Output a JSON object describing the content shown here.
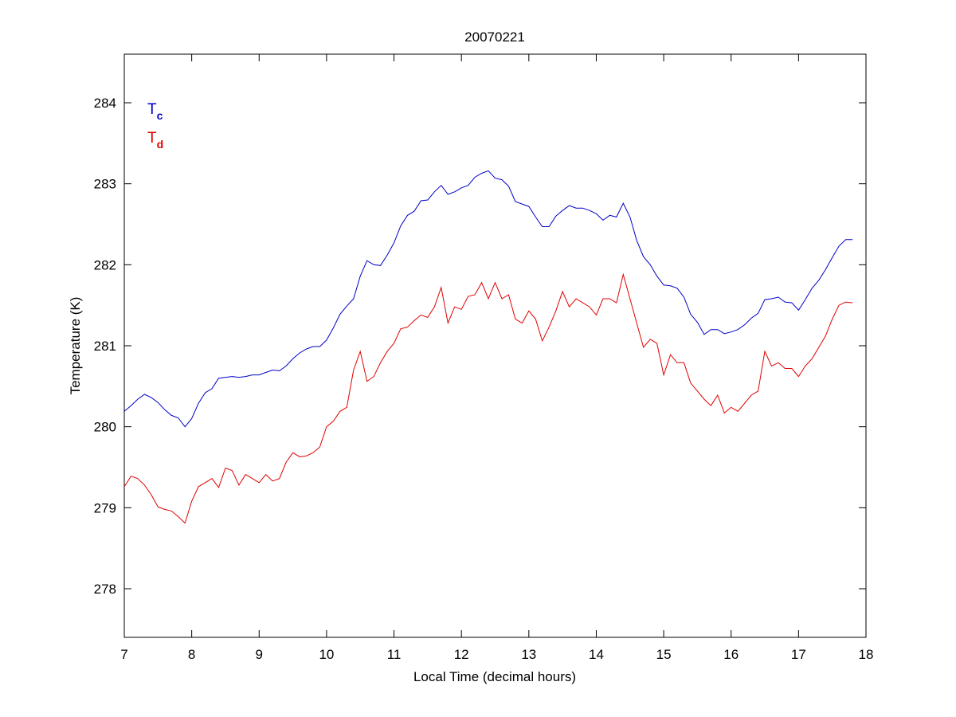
{
  "chart_data": {
    "type": "line",
    "title": "20070221",
    "xlabel": "Local Time (decimal hours)",
    "ylabel": "Temperature (K)",
    "xlim": [
      7,
      18
    ],
    "ylim": [
      277.4,
      284.6
    ],
    "xticks": [
      "7",
      "8",
      "9",
      "10",
      "11",
      "12",
      "13",
      "14",
      "15",
      "16",
      "17",
      "18"
    ],
    "yticks": [
      "278",
      "279",
      "280",
      "281",
      "282",
      "283",
      "284"
    ],
    "grid": false,
    "legend_placement": "top-left",
    "x": [
      7.0,
      7.1,
      7.2,
      7.3,
      7.4,
      7.5,
      7.6,
      7.7,
      7.8,
      7.9,
      8.0,
      8.1,
      8.2,
      8.3,
      8.4,
      8.5,
      8.6,
      8.7,
      8.8,
      8.9,
      9.0,
      9.1,
      9.2,
      9.3,
      9.4,
      9.5,
      9.6,
      9.7,
      9.8,
      9.9,
      10.0,
      10.1,
      10.2,
      10.3,
      10.4,
      10.5,
      10.6,
      10.7,
      10.8,
      10.9,
      11.0,
      11.1,
      11.2,
      11.3,
      11.4,
      11.5,
      11.6,
      11.7,
      11.8,
      11.9,
      12.0,
      12.1,
      12.2,
      12.3,
      12.4,
      12.5,
      12.6,
      12.7,
      12.8,
      12.9,
      13.0,
      13.1,
      13.2,
      13.3,
      13.4,
      13.5,
      13.6,
      13.7,
      13.8,
      13.9,
      14.0,
      14.1,
      14.2,
      14.3,
      14.4,
      14.5,
      14.6,
      14.7,
      14.8,
      14.9,
      15.0,
      15.1,
      15.2,
      15.3,
      15.4,
      15.5,
      15.6,
      15.7,
      15.8,
      15.9,
      16.0,
      16.1,
      16.2,
      16.3,
      16.4,
      16.5,
      16.6,
      16.7,
      16.8,
      16.9,
      17.0,
      17.1,
      17.2,
      17.3,
      17.4,
      17.5,
      17.6,
      17.7,
      17.8
    ],
    "series": [
      {
        "name": "T",
        "subscript": "c",
        "color": "#0000c8",
        "values": [
          280.19,
          280.26,
          280.34,
          280.4,
          280.36,
          280.3,
          280.21,
          280.14,
          280.11,
          280.0,
          280.1,
          280.29,
          280.42,
          280.47,
          280.6,
          280.61,
          280.62,
          280.61,
          280.62,
          280.64,
          280.64,
          280.67,
          280.7,
          280.69,
          280.75,
          280.84,
          280.91,
          280.96,
          280.99,
          280.99,
          281.07,
          281.22,
          281.39,
          281.49,
          281.58,
          281.86,
          282.05,
          282.0,
          281.99,
          282.12,
          282.27,
          282.48,
          282.61,
          282.66,
          282.79,
          282.8,
          282.9,
          282.98,
          282.87,
          282.9,
          282.95,
          282.98,
          283.08,
          283.13,
          283.16,
          283.07,
          283.05,
          282.97,
          282.78,
          282.75,
          282.72,
          282.59,
          282.47,
          282.47,
          282.6,
          282.67,
          282.73,
          282.7,
          282.7,
          282.67,
          282.63,
          282.55,
          282.61,
          282.59,
          282.76,
          282.59,
          282.3,
          282.1,
          282.0,
          281.86,
          281.75,
          281.74,
          281.71,
          281.6,
          281.39,
          281.29,
          281.14,
          281.2,
          281.2,
          281.15,
          281.17,
          281.2,
          281.26,
          281.34,
          281.4,
          281.57,
          281.58,
          281.6,
          281.54,
          281.53,
          281.44,
          281.57,
          281.71,
          281.81,
          281.94,
          282.09,
          282.23,
          282.31,
          282.31
        ]
      },
      {
        "name": "T",
        "subscript": "d",
        "color": "#e00000",
        "values": [
          279.26,
          279.39,
          279.36,
          279.28,
          279.16,
          279.01,
          278.98,
          278.96,
          278.89,
          278.81,
          279.08,
          279.26,
          279.31,
          279.36,
          279.25,
          279.49,
          279.46,
          279.28,
          279.41,
          279.36,
          279.31,
          279.41,
          279.33,
          279.36,
          279.56,
          279.68,
          279.63,
          279.64,
          279.68,
          279.75,
          280.0,
          280.07,
          280.19,
          280.24,
          280.7,
          280.93,
          280.56,
          280.62,
          280.79,
          280.93,
          281.03,
          281.21,
          281.23,
          281.31,
          281.38,
          281.35,
          281.48,
          281.72,
          281.28,
          281.48,
          281.45,
          281.61,
          281.63,
          281.78,
          281.58,
          281.78,
          281.58,
          281.63,
          281.33,
          281.28,
          281.43,
          281.33,
          281.06,
          281.23,
          281.43,
          281.67,
          281.48,
          281.58,
          281.53,
          281.48,
          281.38,
          281.58,
          281.58,
          281.53,
          281.88,
          281.58,
          281.28,
          280.98,
          281.08,
          281.03,
          280.64,
          280.89,
          280.79,
          280.79,
          280.54,
          280.44,
          280.34,
          280.26,
          280.39,
          280.17,
          280.24,
          280.19,
          280.29,
          280.39,
          280.44,
          280.93,
          280.75,
          280.79,
          280.72,
          280.72,
          280.62,
          280.75,
          280.84,
          280.98,
          281.12,
          281.33,
          281.5,
          281.54,
          281.53
        ]
      }
    ]
  }
}
